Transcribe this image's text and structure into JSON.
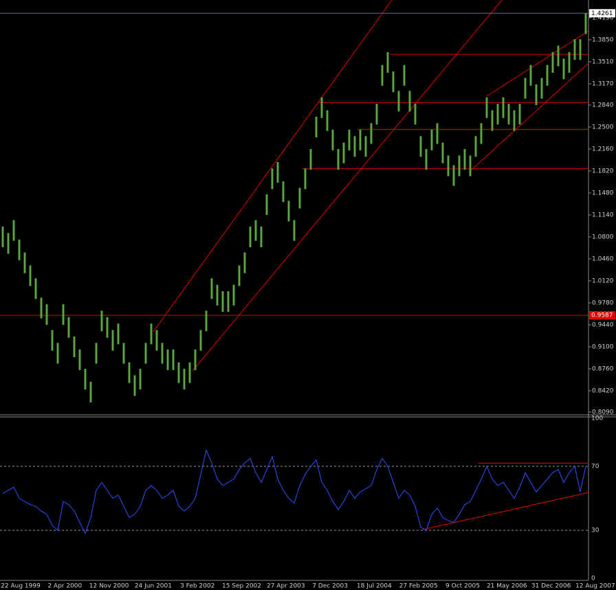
{
  "chart_data": [
    {
      "type": "ohlc",
      "color": "#5aa33f",
      "level_color": "#e00000",
      "price_line_color": "#6a6a8a",
      "high": [
        1.096,
        1.086,
        1.106,
        1.076,
        1.056,
        1.036,
        1.016,
        0.986,
        0.976,
        0.936,
        0.916,
        0.976,
        0.956,
        0.926,
        0.906,
        0.876,
        0.856,
        0.916,
        0.966,
        0.956,
        0.936,
        0.946,
        0.916,
        0.886,
        0.866,
        0.876,
        0.916,
        0.946,
        0.936,
        0.916,
        0.906,
        0.906,
        0.886,
        0.876,
        0.886,
        0.906,
        0.936,
        0.966,
        1.016,
        1.006,
        0.996,
        0.996,
        1.006,
        1.036,
        1.056,
        1.096,
        1.106,
        1.096,
        1.146,
        1.186,
        1.196,
        1.166,
        1.136,
        1.106,
        1.156,
        1.186,
        1.216,
        1.266,
        1.296,
        1.276,
        1.246,
        1.216,
        1.226,
        1.246,
        1.236,
        1.246,
        1.236,
        1.256,
        1.286,
        1.346,
        1.366,
        1.336,
        1.306,
        1.346,
        1.306,
        1.286,
        1.236,
        1.216,
        1.246,
        1.256,
        1.226,
        1.206,
        1.191,
        1.206,
        1.216,
        1.206,
        1.236,
        1.256,
        1.296,
        1.276,
        1.286,
        1.296,
        1.286,
        1.276,
        1.286,
        1.326,
        1.346,
        1.316,
        1.326,
        1.346,
        1.366,
        1.376,
        1.356,
        1.366,
        1.386,
        1.386,
        1.4261
      ],
      "low": [
        1.064,
        1.054,
        1.074,
        1.044,
        1.024,
        1.004,
        0.984,
        0.954,
        0.944,
        0.904,
        0.884,
        0.944,
        0.924,
        0.894,
        0.874,
        0.844,
        0.824,
        0.884,
        0.934,
        0.924,
        0.904,
        0.914,
        0.884,
        0.854,
        0.834,
        0.844,
        0.884,
        0.914,
        0.904,
        0.884,
        0.874,
        0.874,
        0.854,
        0.844,
        0.854,
        0.874,
        0.904,
        0.934,
        0.984,
        0.974,
        0.964,
        0.964,
        0.974,
        1.004,
        1.024,
        1.064,
        1.074,
        1.064,
        1.114,
        1.154,
        1.164,
        1.134,
        1.104,
        1.074,
        1.124,
        1.154,
        1.184,
        1.234,
        1.264,
        1.244,
        1.214,
        1.184,
        1.194,
        1.214,
        1.204,
        1.214,
        1.204,
        1.224,
        1.254,
        1.314,
        1.334,
        1.304,
        1.274,
        1.314,
        1.274,
        1.254,
        1.204,
        1.184,
        1.214,
        1.224,
        1.194,
        1.174,
        1.159,
        1.174,
        1.184,
        1.174,
        1.204,
        1.224,
        1.264,
        1.244,
        1.254,
        1.264,
        1.254,
        1.244,
        1.254,
        1.294,
        1.314,
        1.284,
        1.294,
        1.314,
        1.334,
        1.344,
        1.324,
        1.334,
        1.354,
        1.354,
        1.394
      ],
      "ylim": [
        0.8058,
        1.4466
      ],
      "yticks": [
        {
          "value": 1.419,
          "label": "1.4190"
        },
        {
          "value": 1.385,
          "label": "1.3850"
        },
        {
          "value": 1.351,
          "label": "1.3510"
        },
        {
          "value": 1.317,
          "label": "1.3170"
        },
        {
          "value": 1.284,
          "label": "1.2840"
        },
        {
          "value": 1.25,
          "label": "1.2500"
        },
        {
          "value": 1.216,
          "label": "1.2160"
        },
        {
          "value": 1.182,
          "label": "1.1820"
        },
        {
          "value": 1.148,
          "label": "1.1480"
        },
        {
          "value": 1.114,
          "label": "1.1140"
        },
        {
          "value": 1.08,
          "label": "1.0800"
        },
        {
          "value": 1.046,
          "label": "1.0460"
        },
        {
          "value": 1.012,
          "label": "1.0120"
        },
        {
          "value": 0.978,
          "label": "0.9780"
        },
        {
          "value": 0.944,
          "label": "0.9440"
        },
        {
          "value": 0.91,
          "label": "0.9100"
        },
        {
          "value": 0.876,
          "label": "0.8760"
        },
        {
          "value": 0.842,
          "label": "0.8420"
        },
        {
          "value": 0.809,
          "label": "0.8090"
        }
      ],
      "price_line": 1.4261,
      "marker_level": 0.9587,
      "levels": [
        1.3625,
        1.288,
        1.2465,
        1.1855
      ]
    },
    {
      "type": "line",
      "color": "#2f4fff",
      "level_color": "#e00000",
      "values": [
        53,
        55,
        57,
        50,
        48,
        46,
        45,
        42,
        40,
        33,
        30,
        48,
        46,
        42,
        35,
        28,
        38,
        55,
        60,
        55,
        50,
        52,
        45,
        38,
        40,
        45,
        55,
        58,
        55,
        50,
        52,
        55,
        45,
        42,
        45,
        50,
        65,
        80,
        72,
        62,
        58,
        60,
        62,
        68,
        72,
        75,
        66,
        60,
        68,
        76,
        62,
        55,
        50,
        47,
        58,
        65,
        70,
        74,
        60,
        55,
        48,
        43,
        48,
        55,
        50,
        54,
        56,
        58,
        68,
        75,
        70,
        60,
        50,
        55,
        52,
        45,
        32,
        30,
        40,
        44,
        38,
        36,
        35,
        40,
        46,
        48,
        55,
        62,
        70,
        62,
        58,
        60,
        55,
        50,
        57,
        66,
        60,
        54,
        58,
        62,
        66,
        68,
        60,
        66,
        70,
        54,
        70
      ],
      "ylim": [
        0,
        100
      ],
      "yticks": [
        0,
        30,
        70,
        100
      ],
      "levels": [
        72
      ],
      "x_labels": [
        "22 Aug 1999",
        "2 Apr 2000",
        "12 Nov 2000",
        "24 Jun 2001",
        "3 Feb 2002",
        "15 Sep 2002",
        "27 Apr 2003",
        "7 Dec 2003",
        "18 Jul 2004",
        "27 Feb 2005",
        "9 Oct 2005",
        "21 May 2006",
        "31 Dec 2006",
        "12 Aug 2007"
      ]
    }
  ]
}
